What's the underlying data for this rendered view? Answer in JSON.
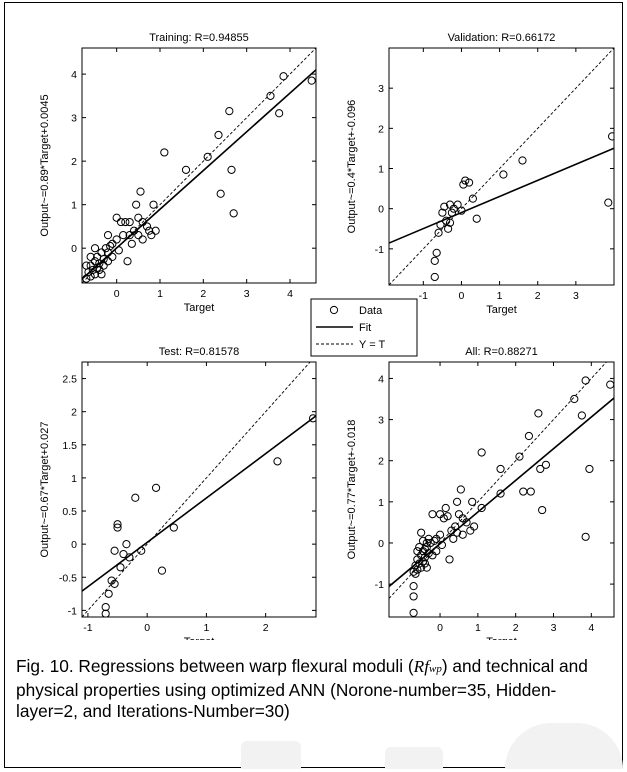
{
  "caption": {
    "part1": "Fig. 10. Regressions between warp flexural moduli (",
    "sym_main": "Rf",
    "sym_sub": "wp",
    "part2": ") and technical and physical properties using optimized ANN (Norone-number=35, Hidden-layer=2, and Iterations-Number=30)"
  },
  "legend": {
    "items": [
      {
        "label": "Data",
        "style": "circle"
      },
      {
        "label": "Fit",
        "style": "solid"
      },
      {
        "label": "Y = T",
        "style": "dashed"
      }
    ]
  },
  "chart_data": [
    {
      "type": "scatter",
      "title": "Training: R=0.94855",
      "xlabel": "Target",
      "ylabel": "Output~=0.89*Target+0.0045",
      "xlim": [
        -0.8,
        4.6
      ],
      "ylim": [
        -0.8,
        4.6
      ],
      "xticks": [
        0,
        1,
        2,
        3,
        4
      ],
      "yticks": [
        0,
        1,
        2,
        3,
        4
      ],
      "fit": {
        "slope": 0.89,
        "intercept": 0.0045
      },
      "points": [
        [
          -0.7,
          -0.7
        ],
        [
          -0.65,
          -0.55
        ],
        [
          -0.6,
          -0.4
        ],
        [
          -0.6,
          -0.65
        ],
        [
          -0.55,
          -0.5
        ],
        [
          -0.5,
          -0.3
        ],
        [
          -0.5,
          -0.6
        ],
        [
          -0.45,
          -0.45
        ],
        [
          -0.45,
          -0.2
        ],
        [
          -0.4,
          -0.5
        ],
        [
          -0.4,
          -0.35
        ],
        [
          -0.35,
          -0.1
        ],
        [
          -0.35,
          -0.6
        ],
        [
          -0.3,
          -0.25
        ],
        [
          -0.3,
          -0.4
        ],
        [
          -0.25,
          0.0
        ],
        [
          -0.2,
          -0.3
        ],
        [
          -0.2,
          -0.1
        ],
        [
          -0.15,
          0.05
        ],
        [
          -0.1,
          -0.2
        ],
        [
          -0.1,
          0.1
        ],
        [
          -0.5,
          0.0
        ],
        [
          -0.6,
          -0.2
        ],
        [
          -0.7,
          -0.4
        ],
        [
          0.0,
          0.2
        ],
        [
          0.05,
          -0.05
        ],
        [
          0.1,
          0.6
        ],
        [
          0.15,
          0.3
        ],
        [
          0.2,
          0.6
        ],
        [
          0.3,
          0.3
        ],
        [
          0.3,
          0.6
        ],
        [
          0.35,
          0.1
        ],
        [
          0.4,
          0.4
        ],
        [
          0.45,
          1.0
        ],
        [
          0.5,
          0.7
        ],
        [
          0.5,
          0.3
        ],
        [
          0.55,
          1.3
        ],
        [
          0.6,
          0.6
        ],
        [
          0.6,
          0.2
        ],
        [
          0.7,
          0.5
        ],
        [
          0.75,
          0.4
        ],
        [
          0.8,
          0.3
        ],
        [
          0.85,
          1.0
        ],
        [
          0.9,
          0.4
        ],
        [
          0.25,
          -0.3
        ],
        [
          0.0,
          0.7
        ],
        [
          -0.2,
          0.3
        ],
        [
          1.1,
          2.2
        ],
        [
          1.6,
          1.8
        ],
        [
          2.1,
          2.1
        ],
        [
          2.35,
          2.6
        ],
        [
          2.4,
          1.25
        ],
        [
          2.6,
          3.15
        ],
        [
          2.65,
          1.8
        ],
        [
          2.7,
          0.8
        ],
        [
          3.55,
          3.5
        ],
        [
          3.75,
          3.1
        ],
        [
          3.85,
          3.95
        ],
        [
          4.5,
          3.85
        ]
      ]
    },
    {
      "type": "scatter",
      "title": "Validation: R=0.66172",
      "xlabel": "Target",
      "ylabel": "Output~=0.4*Target+-0.096",
      "xlim": [
        -1.9,
        4.0
      ],
      "ylim": [
        -1.9,
        4.0
      ],
      "xticks": [
        -1,
        0,
        1,
        2,
        3
      ],
      "yticks": [
        -1,
        0,
        1,
        2,
        3
      ],
      "fit": {
        "slope": 0.4,
        "intercept": -0.096
      },
      "points": [
        [
          -0.7,
          -1.7
        ],
        [
          -0.7,
          -1.3
        ],
        [
          -0.65,
          -1.1
        ],
        [
          -0.6,
          -0.6
        ],
        [
          -0.55,
          -0.4
        ],
        [
          -0.5,
          -0.1
        ],
        [
          -0.45,
          0.05
        ],
        [
          -0.4,
          -0.3
        ],
        [
          -0.35,
          -0.5
        ],
        [
          -0.3,
          0.1
        ],
        [
          -0.3,
          -0.35
        ],
        [
          -0.25,
          -0.1
        ],
        [
          -0.2,
          0.0
        ],
        [
          -0.1,
          0.1
        ],
        [
          0.0,
          -0.05
        ],
        [
          0.05,
          0.6
        ],
        [
          0.1,
          0.7
        ],
        [
          0.2,
          0.65
        ],
        [
          0.3,
          0.25
        ],
        [
          0.4,
          -0.25
        ],
        [
          1.1,
          0.85
        ],
        [
          1.6,
          1.2
        ],
        [
          3.85,
          0.15
        ],
        [
          3.95,
          1.8
        ]
      ]
    },
    {
      "type": "scatter",
      "title": "Test: R=0.81578",
      "xlabel": "Target",
      "ylabel": "Output~=0.67*Target+0.027",
      "xlim": [
        -1.1,
        2.85
      ],
      "ylim": [
        -1.1,
        2.75
      ],
      "xticks": [
        -1,
        0,
        1,
        2
      ],
      "yticks": [
        -1,
        -0.5,
        0,
        0.5,
        1,
        1.5,
        2,
        2.5
      ],
      "fit": {
        "slope": 0.67,
        "intercept": 0.027
      },
      "points": [
        [
          -0.7,
          -1.05
        ],
        [
          -0.7,
          -0.95
        ],
        [
          -0.65,
          -0.75
        ],
        [
          -0.6,
          -0.55
        ],
        [
          -0.55,
          -0.6
        ],
        [
          -0.55,
          -0.1
        ],
        [
          -0.5,
          0.3
        ],
        [
          -0.5,
          0.25
        ],
        [
          -0.45,
          -0.35
        ],
        [
          -0.4,
          -0.15
        ],
        [
          -0.35,
          0.0
        ],
        [
          -0.3,
          -0.2
        ],
        [
          -0.2,
          0.7
        ],
        [
          -0.1,
          -0.1
        ],
        [
          0.15,
          0.85
        ],
        [
          0.25,
          -0.4
        ],
        [
          0.45,
          0.25
        ],
        [
          2.2,
          1.25
        ],
        [
          2.8,
          1.9
        ]
      ]
    },
    {
      "type": "scatter",
      "title": "All: R=0.88271",
      "xlabel": "Target",
      "ylabel": "Output~=0.77*Target+-0.018",
      "xlim": [
        -1.35,
        4.6
      ],
      "ylim": [
        -1.8,
        4.4
      ],
      "xticks": [
        0,
        1,
        2,
        3,
        4
      ],
      "yticks": [
        -1,
        0,
        1,
        2,
        3,
        4
      ],
      "fit": {
        "slope": 0.77,
        "intercept": -0.018
      },
      "points": [
        [
          -0.7,
          -1.7
        ],
        [
          -0.7,
          -1.3
        ],
        [
          -0.7,
          -1.05
        ],
        [
          -0.7,
          -0.7
        ],
        [
          -0.65,
          -0.55
        ],
        [
          -0.65,
          -0.75
        ],
        [
          -0.6,
          -0.4
        ],
        [
          -0.6,
          -0.65
        ],
        [
          -0.6,
          -0.2
        ],
        [
          -0.55,
          -0.5
        ],
        [
          -0.55,
          -0.1
        ],
        [
          -0.5,
          -0.3
        ],
        [
          -0.5,
          0.25
        ],
        [
          -0.5,
          -0.6
        ],
        [
          -0.45,
          -0.45
        ],
        [
          -0.45,
          -0.2
        ],
        [
          -0.45,
          0.05
        ],
        [
          -0.4,
          -0.5
        ],
        [
          -0.4,
          -0.35
        ],
        [
          -0.4,
          -0.15
        ],
        [
          -0.35,
          -0.1
        ],
        [
          -0.35,
          0.0
        ],
        [
          -0.35,
          -0.6
        ],
        [
          -0.3,
          -0.25
        ],
        [
          -0.3,
          0.1
        ],
        [
          -0.25,
          0.0
        ],
        [
          -0.2,
          -0.3
        ],
        [
          -0.2,
          0.7
        ],
        [
          -0.15,
          0.05
        ],
        [
          -0.1,
          -0.2
        ],
        [
          -0.1,
          0.1
        ],
        [
          0.0,
          0.2
        ],
        [
          0.0,
          0.7
        ],
        [
          0.05,
          -0.05
        ],
        [
          0.1,
          0.6
        ],
        [
          0.15,
          0.85
        ],
        [
          0.2,
          0.65
        ],
        [
          0.25,
          -0.4
        ],
        [
          0.3,
          0.3
        ],
        [
          0.35,
          0.1
        ],
        [
          0.4,
          0.4
        ],
        [
          0.45,
          1.0
        ],
        [
          0.45,
          0.25
        ],
        [
          0.5,
          0.7
        ],
        [
          0.55,
          1.3
        ],
        [
          0.6,
          0.6
        ],
        [
          0.6,
          0.2
        ],
        [
          0.7,
          0.5
        ],
        [
          0.8,
          0.3
        ],
        [
          0.85,
          1.0
        ],
        [
          0.9,
          0.4
        ],
        [
          1.1,
          2.2
        ],
        [
          1.1,
          0.85
        ],
        [
          1.6,
          1.8
        ],
        [
          1.6,
          1.2
        ],
        [
          2.1,
          2.1
        ],
        [
          2.2,
          1.25
        ],
        [
          2.35,
          2.6
        ],
        [
          2.4,
          1.25
        ],
        [
          2.6,
          3.15
        ],
        [
          2.65,
          1.8
        ],
        [
          2.7,
          0.8
        ],
        [
          2.8,
          1.9
        ],
        [
          3.55,
          3.5
        ],
        [
          3.75,
          3.1
        ],
        [
          3.85,
          3.95
        ],
        [
          3.85,
          0.15
        ],
        [
          3.95,
          1.8
        ],
        [
          4.5,
          3.85
        ]
      ]
    }
  ]
}
